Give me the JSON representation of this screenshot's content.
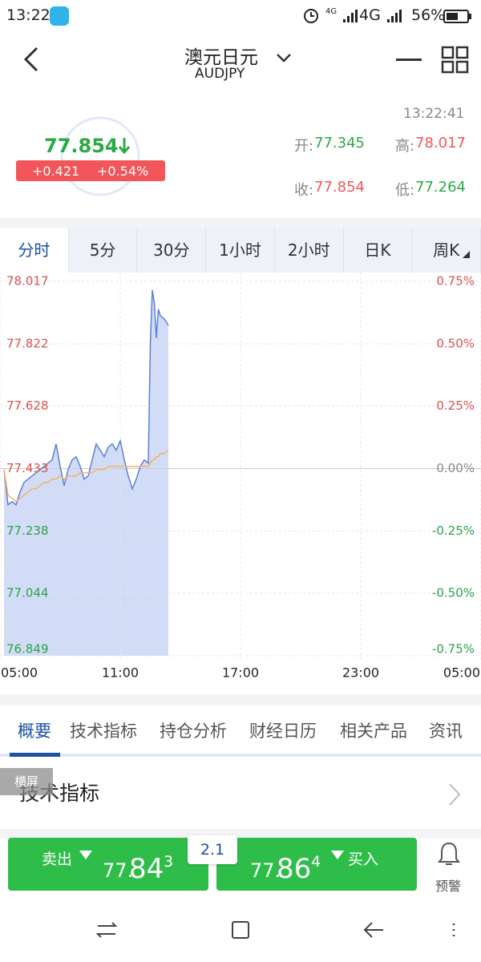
{
  "status_bar": {
    "time": "13:22",
    "network_1": "4G",
    "network_2": "4G",
    "battery": "56%"
  },
  "header": {
    "title": "澳元日元",
    "symbol": "AUDJPY"
  },
  "quote": {
    "time": "13:22:41",
    "price": "77.854",
    "change": "+0.421",
    "change_pct": "+0.54%",
    "open_label": "开:",
    "open": "77.345",
    "high_label": "高:",
    "high": "78.017",
    "close_label": "收:",
    "close": "77.854",
    "low_label": "低:",
    "low": "77.264"
  },
  "period_tabs": [
    "分时",
    "5分",
    "30分",
    "1小时",
    "2小时",
    "日K",
    "周K"
  ],
  "chart_data": {
    "type": "line",
    "x": [
      0.2,
      0.4,
      0.6,
      0.8,
      1.0,
      1.2,
      1.4,
      1.6,
      1.8,
      2.0,
      2.2,
      2.4,
      2.6,
      2.8,
      3.0,
      3.2,
      3.4,
      3.6,
      3.8,
      4.0,
      4.2,
      4.4,
      4.6,
      4.8,
      5.0,
      5.2,
      5.4,
      5.6,
      5.8,
      6.0,
      6.2,
      6.4,
      6.6,
      6.8,
      7.0,
      7.2,
      7.4,
      7.5,
      7.6,
      7.7,
      7.8,
      7.9,
      8.0,
      8.2,
      8.4
    ],
    "series": [
      {
        "color": "#5b7fdc",
        "fill": "#d3dcf6",
        "values": [
          77.43,
          77.32,
          77.33,
          77.32,
          77.36,
          77.39,
          77.4,
          77.41,
          77.42,
          77.43,
          77.44,
          77.45,
          77.46,
          77.51,
          77.44,
          77.38,
          77.43,
          77.46,
          77.47,
          77.44,
          77.4,
          77.41,
          77.46,
          77.51,
          77.49,
          77.47,
          77.5,
          77.51,
          77.49,
          77.52,
          77.46,
          77.41,
          77.37,
          77.4,
          77.44,
          77.46,
          77.45,
          77.82,
          77.99,
          77.95,
          77.84,
          77.93,
          77.91,
          77.9,
          77.88
        ]
      },
      {
        "color": "#f5b266",
        "values": [
          77.43,
          77.35,
          77.34,
          77.33,
          77.34,
          77.35,
          77.36,
          77.37,
          77.37,
          77.38,
          77.39,
          77.39,
          77.4,
          77.4,
          77.41,
          77.4,
          77.41,
          77.41,
          77.41,
          77.42,
          77.42,
          77.42,
          77.42,
          77.43,
          77.43,
          77.43,
          77.44,
          77.44,
          77.44,
          77.44,
          77.44,
          77.44,
          77.44,
          77.44,
          77.44,
          77.44,
          77.44,
          77.45,
          77.46,
          77.46,
          77.47,
          77.47,
          77.48,
          77.48,
          77.49
        ]
      }
    ],
    "xlim": [
      0,
      24
    ],
    "xticks": [
      {
        "value": 0,
        "label": "05:00"
      },
      {
        "value": 6,
        "label": "11:00"
      },
      {
        "value": 12,
        "label": "17:00"
      },
      {
        "value": 18,
        "label": "23:00"
      },
      {
        "value": 24,
        "label": "05:00"
      }
    ],
    "ylim": [
      76.849,
      78.017
    ],
    "yticks": [
      78.017,
      77.822,
      77.628,
      77.433,
      77.238,
      77.044,
      76.849
    ],
    "y2lim": [
      -0.75,
      0.75
    ],
    "y2ticks": [
      {
        "value": 0.75,
        "label": "0.75%"
      },
      {
        "value": 0.5,
        "label": "0.50%"
      },
      {
        "value": 0.25,
        "label": "0.25%"
      },
      {
        "value": 0,
        "label": "0.00%"
      },
      {
        "value": -0.25,
        "label": "-0.25%"
      },
      {
        "value": -0.5,
        "label": "-0.50%"
      },
      {
        "value": -0.75,
        "label": "-0.75%"
      }
    ],
    "grid": true
  },
  "info_tabs": [
    "概要",
    "技术指标",
    "持仓分析",
    "财经日历",
    "相关产品",
    "资讯"
  ],
  "section": {
    "badge": "横屏",
    "title": "技术指标"
  },
  "trade": {
    "sell_label": "卖出",
    "sell_price": [
      "77.",
      "84",
      "3"
    ],
    "spread": "2.1",
    "buy_price": [
      "77.",
      "86",
      "4"
    ],
    "buy_label": "买入",
    "alert": "预警"
  }
}
